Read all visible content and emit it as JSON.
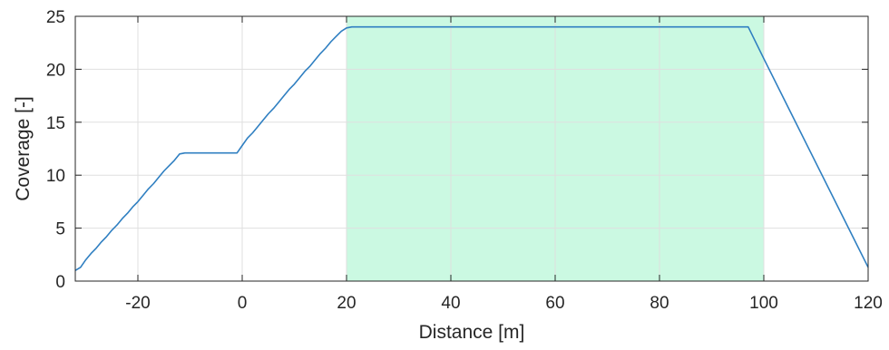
{
  "chart_data": {
    "type": "line",
    "xlabel": "Distance [m]",
    "ylabel": "Coverage [-]",
    "xlim": [
      -32,
      120
    ],
    "ylim": [
      0,
      25
    ],
    "xticks": [
      -20,
      0,
      20,
      40,
      60,
      80,
      100,
      120
    ],
    "yticks": [
      0,
      5,
      10,
      15,
      20,
      25
    ],
    "grid": true,
    "highlight_region": {
      "x": [
        20,
        100
      ],
      "color": "#cbf9e2"
    },
    "line_color": "#2f7fc1",
    "series": [
      {
        "x": [
          -32,
          -31,
          -30,
          -29,
          -28,
          -27,
          -26,
          -25,
          -24,
          -23,
          -22,
          -21,
          -20,
          -19,
          -18,
          -17,
          -16,
          -15,
          -14,
          -13,
          -12,
          -11,
          -10.5,
          -1,
          0,
          1,
          2,
          3,
          4,
          5,
          6,
          7,
          8,
          9,
          10,
          11,
          12,
          13,
          14,
          15,
          16,
          17,
          18,
          19,
          20,
          21,
          22,
          97,
          100,
          120
        ],
        "y": [
          1,
          1.3,
          2,
          2.6,
          3.1,
          3.7,
          4.2,
          4.8,
          5.3,
          5.9,
          6.4,
          7.0,
          7.5,
          8.1,
          8.7,
          9.2,
          9.8,
          10.4,
          10.9,
          11.4,
          12.0,
          12.1,
          12.1,
          12.1,
          12.8,
          13.5,
          14.0,
          14.6,
          15.2,
          15.8,
          16.3,
          16.9,
          17.5,
          18.1,
          18.6,
          19.2,
          19.8,
          20.3,
          20.9,
          21.5,
          22.0,
          22.6,
          23.1,
          23.6,
          23.9,
          24.0,
          24.0,
          24.0,
          21.0,
          1.3
        ]
      }
    ]
  }
}
